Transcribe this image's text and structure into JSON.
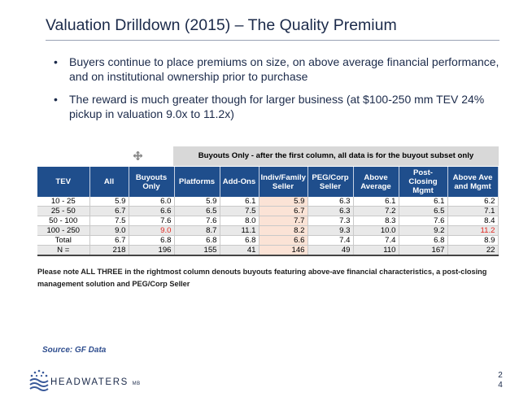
{
  "title": "Valuation Drilldown (2015) – The Quality Premium",
  "bullets": [
    "Buyers continue to place premiums on size, on above average financial performance, and on institutional ownership prior to purchase",
    "The reward is much greater though for larger business (at $100-250 mm TEV 24% pickup in valuation 9.0x to 11.2x)"
  ],
  "bullet_glyph": "•",
  "table": {
    "banner": "Buyouts Only - after the first column, all data is for the buyout subset only",
    "headers": [
      "TEV",
      "All",
      "Buyouts Only",
      "Platforms",
      "Add-Ons",
      "Indiv/Family Seller",
      "PEG/Corp Seller",
      "Above Average",
      "Post-Closing Mgmt",
      "Above Ave and Mgmt"
    ],
    "rows": [
      [
        "10 - 25",
        "5.9",
        "6.0",
        "5.9",
        "6.1",
        "5.9",
        "6.3",
        "6.1",
        "6.1",
        "6.2"
      ],
      [
        "25 - 50",
        "6.7",
        "6.6",
        "6.5",
        "7.5",
        "6.7",
        "6.3",
        "7.2",
        "6.5",
        "7.1"
      ],
      [
        "50 - 100",
        "7.5",
        "7.6",
        "7.6",
        "8.0",
        "7.7",
        "7.3",
        "8.3",
        "7.6",
        "8.4"
      ],
      [
        "100 - 250",
        "9.0",
        "9.0",
        "8.7",
        "11.1",
        "8.2",
        "9.3",
        "10.0",
        "9.2",
        "11.2"
      ],
      [
        "Total",
        "6.7",
        "6.8",
        "6.8",
        "6.8",
        "6.6",
        "7.4",
        "7.4",
        "6.8",
        "8.9"
      ],
      [
        "N =",
        "218",
        "196",
        "155",
        "41",
        "146",
        "49",
        "110",
        "167",
        "22"
      ]
    ],
    "note": "Please note ALL THREE in the rightmost column denouts buyouts featuring above-ave financial characteristics, a post-closing management solution and PEG/Corp Seller"
  },
  "source": "Source:  GF Data",
  "logo": {
    "main": "HEADWATERS",
    "sub": "MB"
  },
  "page_number": [
    "2",
    "4"
  ],
  "colors": {
    "header_bg": "#1f4e8c",
    "highlight": "#fbe3d6",
    "red": "#e0261f",
    "title": "#1b2a4a",
    "source": "#2e4d8e"
  }
}
